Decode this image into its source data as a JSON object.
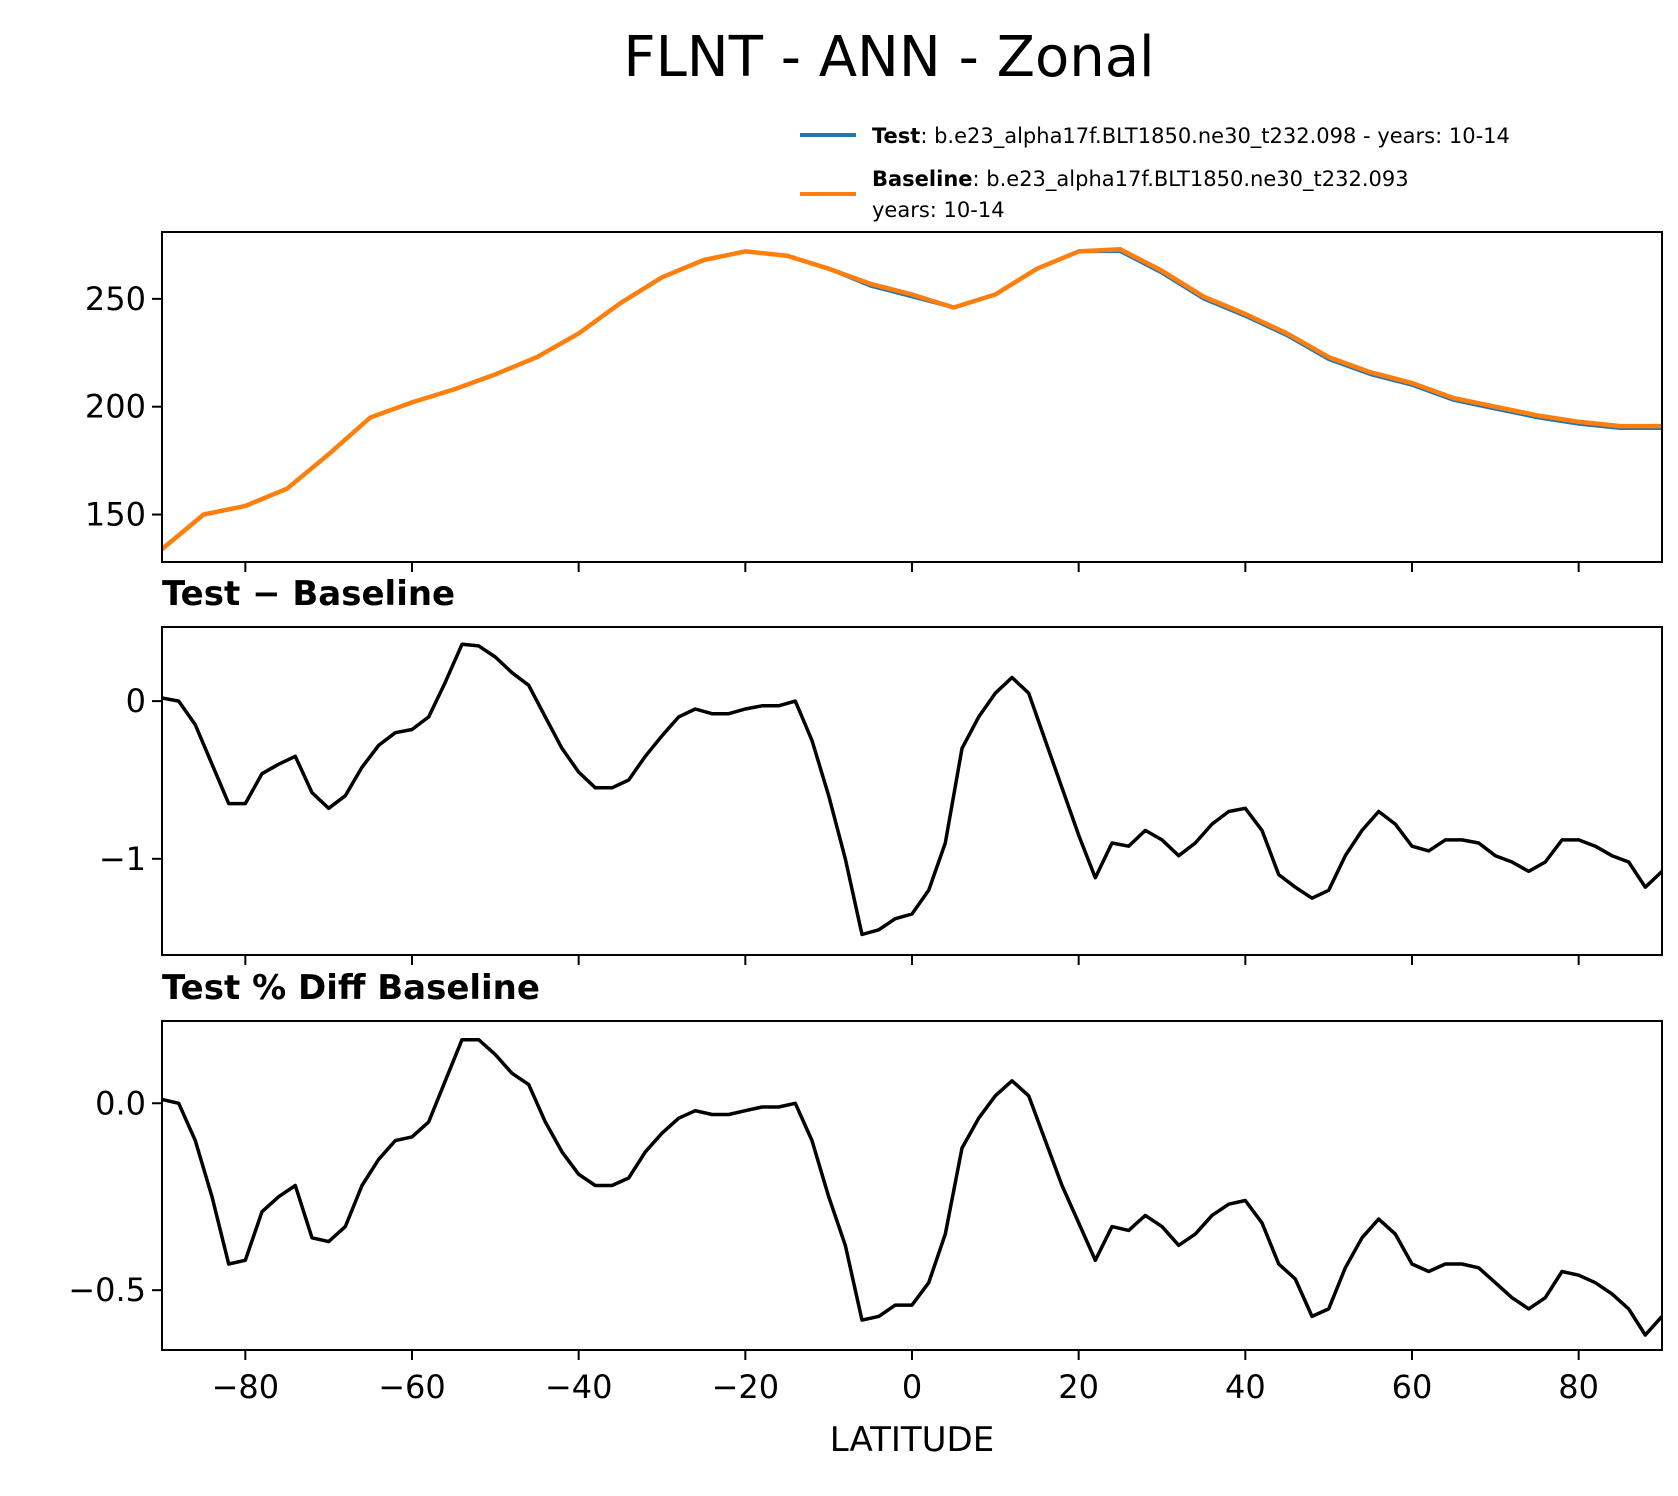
{
  "title": "FLNT - ANN - Zonal",
  "legend": {
    "test_label": "Test",
    "test_text": ": b.e23_alpha17f.BLT1850.ne30_t232.098 - years: 10-14",
    "baseline_label": "Baseline",
    "baseline_text": ": b.e23_alpha17f.BLT1850.ne30_t232.093",
    "baseline_text2": "years: 10-14"
  },
  "colors": {
    "test": "#1f77b4",
    "baseline": "#ff7f0e",
    "diff": "#000000"
  },
  "chart_data": [
    {
      "type": "line",
      "panel": "zonal-mean",
      "title": "",
      "xlim": [
        -90,
        90
      ],
      "ylim": [
        128,
        281
      ],
      "yticks": [
        150,
        200,
        250
      ],
      "x": [
        -90,
        -85,
        -80,
        -75,
        -70,
        -65,
        -60,
        -55,
        -50,
        -45,
        -40,
        -35,
        -30,
        -25,
        -20,
        -15,
        -10,
        -5,
        0,
        5,
        10,
        15,
        20,
        25,
        30,
        35,
        40,
        45,
        50,
        55,
        60,
        65,
        70,
        75,
        80,
        85,
        90
      ],
      "series": [
        {
          "name": "Test",
          "values": [
            134,
            150,
            154,
            162,
            178,
            195,
            202,
            208,
            215,
            223,
            234,
            248,
            260,
            268,
            272,
            270,
            264,
            256,
            251,
            246,
            252,
            264,
            272,
            272,
            262,
            250,
            242,
            233,
            222,
            215,
            210,
            203,
            199,
            195,
            192,
            190,
            190
          ]
        },
        {
          "name": "Baseline",
          "values": [
            134,
            150,
            154,
            162,
            178,
            195,
            202,
            208,
            215,
            223,
            234,
            248,
            260,
            268,
            272,
            270,
            264,
            257,
            252,
            246,
            252,
            264,
            272,
            273,
            263,
            251,
            243,
            234,
            223,
            216,
            211,
            204,
            200,
            196,
            193,
            191,
            191
          ]
        }
      ]
    },
    {
      "type": "line",
      "panel": "difference",
      "title": "Test − Baseline",
      "xlim": [
        -90,
        90
      ],
      "ylim": [
        -1.61,
        0.47
      ],
      "yticks": [
        0,
        -1
      ],
      "ytick_labels": [
        "0",
        "−1"
      ],
      "x": [
        -90,
        -88,
        -86,
        -84,
        -82,
        -80,
        -78,
        -76,
        -74,
        -72,
        -70,
        -68,
        -66,
        -64,
        -62,
        -60,
        -58,
        -56,
        -54,
        -52,
        -50,
        -48,
        -46,
        -44,
        -42,
        -40,
        -38,
        -36,
        -34,
        -32,
        -30,
        -28,
        -26,
        -24,
        -22,
        -20,
        -18,
        -16,
        -14,
        -12,
        -10,
        -8,
        -6,
        -4,
        -2,
        0,
        2,
        4,
        6,
        8,
        10,
        12,
        14,
        16,
        18,
        20,
        22,
        24,
        26,
        28,
        30,
        32,
        34,
        36,
        38,
        40,
        42,
        44,
        46,
        48,
        50,
        52,
        54,
        56,
        58,
        60,
        62,
        64,
        66,
        68,
        70,
        72,
        74,
        76,
        78,
        80,
        82,
        84,
        86,
        88,
        90
      ],
      "values": [
        0.02,
        0.0,
        -0.15,
        -0.4,
        -0.65,
        -0.65,
        -0.46,
        -0.4,
        -0.35,
        -0.58,
        -0.68,
        -0.6,
        -0.42,
        -0.28,
        -0.2,
        -0.18,
        -0.1,
        0.12,
        0.36,
        0.35,
        0.28,
        0.18,
        0.1,
        -0.1,
        -0.3,
        -0.45,
        -0.55,
        -0.55,
        -0.5,
        -0.35,
        -0.22,
        -0.1,
        -0.05,
        -0.08,
        -0.08,
        -0.05,
        -0.03,
        -0.03,
        0.0,
        -0.25,
        -0.6,
        -1.0,
        -1.48,
        -1.45,
        -1.38,
        -1.35,
        -1.2,
        -0.9,
        -0.3,
        -0.1,
        0.05,
        0.15,
        0.05,
        -0.25,
        -0.55,
        -0.85,
        -1.12,
        -0.9,
        -0.92,
        -0.82,
        -0.88,
        -0.98,
        -0.9,
        -0.78,
        -0.7,
        -0.68,
        -0.82,
        -1.1,
        -1.18,
        -1.25,
        -1.2,
        -0.98,
        -0.82,
        -0.7,
        -0.78,
        -0.92,
        -0.95,
        -0.88,
        -0.88,
        -0.9,
        -0.98,
        -1.02,
        -1.08,
        -1.02,
        -0.88,
        -0.88,
        -0.92,
        -0.98,
        -1.02,
        -1.18,
        -1.08
      ]
    },
    {
      "type": "line",
      "panel": "percent-difference",
      "title": "Test % Diff Baseline",
      "xlim": [
        -90,
        90
      ],
      "xlabel": "LATITUDE",
      "xticks": [
        -80,
        -60,
        -40,
        -20,
        0,
        20,
        40,
        60,
        80
      ],
      "xtick_labels": [
        "−80",
        "−60",
        "−40",
        "−20",
        "0",
        "20",
        "40",
        "60",
        "80"
      ],
      "ylim": [
        -0.66,
        0.22
      ],
      "yticks": [
        0.0,
        -0.5
      ],
      "ytick_labels": [
        "0.0",
        "−0.5"
      ],
      "x": [
        -90,
        -88,
        -86,
        -84,
        -82,
        -80,
        -78,
        -76,
        -74,
        -72,
        -70,
        -68,
        -66,
        -64,
        -62,
        -60,
        -58,
        -56,
        -54,
        -52,
        -50,
        -48,
        -46,
        -44,
        -42,
        -40,
        -38,
        -36,
        -34,
        -32,
        -30,
        -28,
        -26,
        -24,
        -22,
        -20,
        -18,
        -16,
        -14,
        -12,
        -10,
        -8,
        -6,
        -4,
        -2,
        0,
        2,
        4,
        6,
        8,
        10,
        12,
        14,
        16,
        18,
        20,
        22,
        24,
        26,
        28,
        30,
        32,
        34,
        36,
        38,
        40,
        42,
        44,
        46,
        48,
        50,
        52,
        54,
        56,
        58,
        60,
        62,
        64,
        66,
        68,
        70,
        72,
        74,
        76,
        78,
        80,
        82,
        84,
        86,
        88,
        90
      ],
      "values": [
        0.01,
        0.0,
        -0.1,
        -0.25,
        -0.43,
        -0.42,
        -0.29,
        -0.25,
        -0.22,
        -0.36,
        -0.37,
        -0.33,
        -0.22,
        -0.15,
        -0.1,
        -0.09,
        -0.05,
        0.06,
        0.17,
        0.17,
        0.13,
        0.08,
        0.05,
        -0.05,
        -0.13,
        -0.19,
        -0.22,
        -0.22,
        -0.2,
        -0.13,
        -0.08,
        -0.04,
        -0.02,
        -0.03,
        -0.03,
        -0.02,
        -0.01,
        -0.01,
        0.0,
        -0.1,
        -0.25,
        -0.38,
        -0.58,
        -0.57,
        -0.54,
        -0.54,
        -0.48,
        -0.35,
        -0.12,
        -0.04,
        0.02,
        0.06,
        0.02,
        -0.1,
        -0.22,
        -0.32,
        -0.42,
        -0.33,
        -0.34,
        -0.3,
        -0.33,
        -0.38,
        -0.35,
        -0.3,
        -0.27,
        -0.26,
        -0.32,
        -0.43,
        -0.47,
        -0.57,
        -0.55,
        -0.44,
        -0.36,
        -0.31,
        -0.35,
        -0.43,
        -0.45,
        -0.43,
        -0.43,
        -0.44,
        -0.48,
        -0.52,
        -0.55,
        -0.52,
        -0.45,
        -0.46,
        -0.48,
        -0.51,
        -0.55,
        -0.62,
        -0.57
      ]
    }
  ]
}
